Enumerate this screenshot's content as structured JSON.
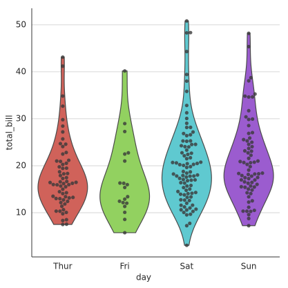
{
  "chart_data": {
    "type": "violin",
    "x_label": "day",
    "y_label": "total_bill",
    "categories": [
      "Thur",
      "Fri",
      "Sat",
      "Sun"
    ],
    "colors": [
      "#d0625a",
      "#92d160",
      "#5fc9d0",
      "#9b5ccf"
    ],
    "point_color": "#3a3a3a",
    "ylim": [
      0.6,
      53.5
    ],
    "yticks": [
      10,
      20,
      30,
      40,
      50
    ],
    "grid": true,
    "values": [
      [
        7.51,
        7.56,
        8.35,
        8.52,
        9.78,
        10.07,
        10.33,
        10.34,
        10.65,
        11.38,
        11.87,
        12.16,
        12.43,
        12.74,
        13,
        13.03,
        13.16,
        13.27,
        13.42,
        13.51,
        14.07,
        14.26,
        14.48,
        15.01,
        15.53,
        15.69,
        15.95,
        15.98,
        16,
        16.21,
        16.27,
        16.43,
        16.47,
        16.58,
        16.66,
        17.29,
        17.47,
        17.92,
        18.28,
        18.35,
        18.71,
        19.44,
        19.49,
        19.77,
        20.27,
        20.53,
        20.92,
        21.01,
        21.16,
        22.49,
        22.82,
        24.08,
        24.59,
        24.71,
        25.71,
        27.2,
        28.44,
        29.8,
        32.68,
        34.83,
        41.19,
        43.11
      ],
      [
        5.75,
        8.58,
        10.09,
        11.35,
        12.03,
        12.16,
        12.46,
        12.9,
        13.42,
        15.38,
        15.98,
        16.27,
        16.32,
        21.01,
        22.49,
        22.75,
        27.28,
        28.97,
        40.17
      ],
      [
        3.07,
        7.25,
        7.74,
        9.55,
        9.68,
        10.07,
        10.29,
        10.59,
        10.63,
        10.77,
        11.02,
        11.24,
        11.59,
        11.61,
        12.02,
        12.6,
        12.69,
        12.76,
        13.28,
        13.37,
        13.81,
        13.94,
        14.07,
        14.15,
        14.31,
        14.52,
        14.78,
        15.04,
        15.36,
        15.69,
        15.81,
        16.31,
        16.4,
        16.82,
        16.93,
        16.99,
        17.07,
        17.31,
        17.59,
        17.78,
        17.81,
        17.82,
        17.92,
        18.04,
        18.24,
        18.43,
        18.69,
        18.78,
        19.65,
        19.81,
        20.08,
        20.23,
        20.29,
        20.45,
        20.49,
        20.6,
        20.69,
        20.76,
        21.5,
        21.7,
        22.12,
        22.42,
        22.67,
        22.76,
        23.33,
        24.01,
        24.06,
        24.27,
        24.52,
        24.55,
        25.21,
        25.28,
        25.29,
        26.41,
        26.59,
        26.86,
        27.18,
        28.15,
        28.17,
        29.03,
        30.06,
        31.27,
        32.83,
        35.83,
        38.01,
        39.42,
        44.3,
        48.27,
        48.33,
        50.81
      ],
      [
        7.25,
        8.77,
        9.6,
        10.29,
        10.33,
        10.34,
        10.51,
        11.17,
        12.26,
        12.54,
        13.39,
        14.07,
        14.26,
        14.83,
        15.04,
        15.42,
        15.48,
        15.53,
        15.69,
        16.04,
        16.29,
        16.45,
        16.58,
        16.97,
        16.99,
        17.26,
        17.46,
        17.51,
        17.78,
        17.92,
        18.15,
        18.24,
        18.29,
        18.35,
        18.43,
        19.08,
        19.82,
        20.29,
        20.65,
        20.69,
        20.76,
        20.9,
        21.01,
        21.58,
        22.23,
        22.75,
        23.1,
        23.17,
        23.68,
        24.06,
        24.55,
        25,
        25.29,
        25.56,
        25.89,
        26.88,
        27.05,
        28.55,
        29.85,
        29.93,
        30.4,
        31.71,
        34.63,
        34.65,
        34.81,
        35.26,
        38.07,
        38.73,
        45.35,
        48.17
      ]
    ]
  }
}
